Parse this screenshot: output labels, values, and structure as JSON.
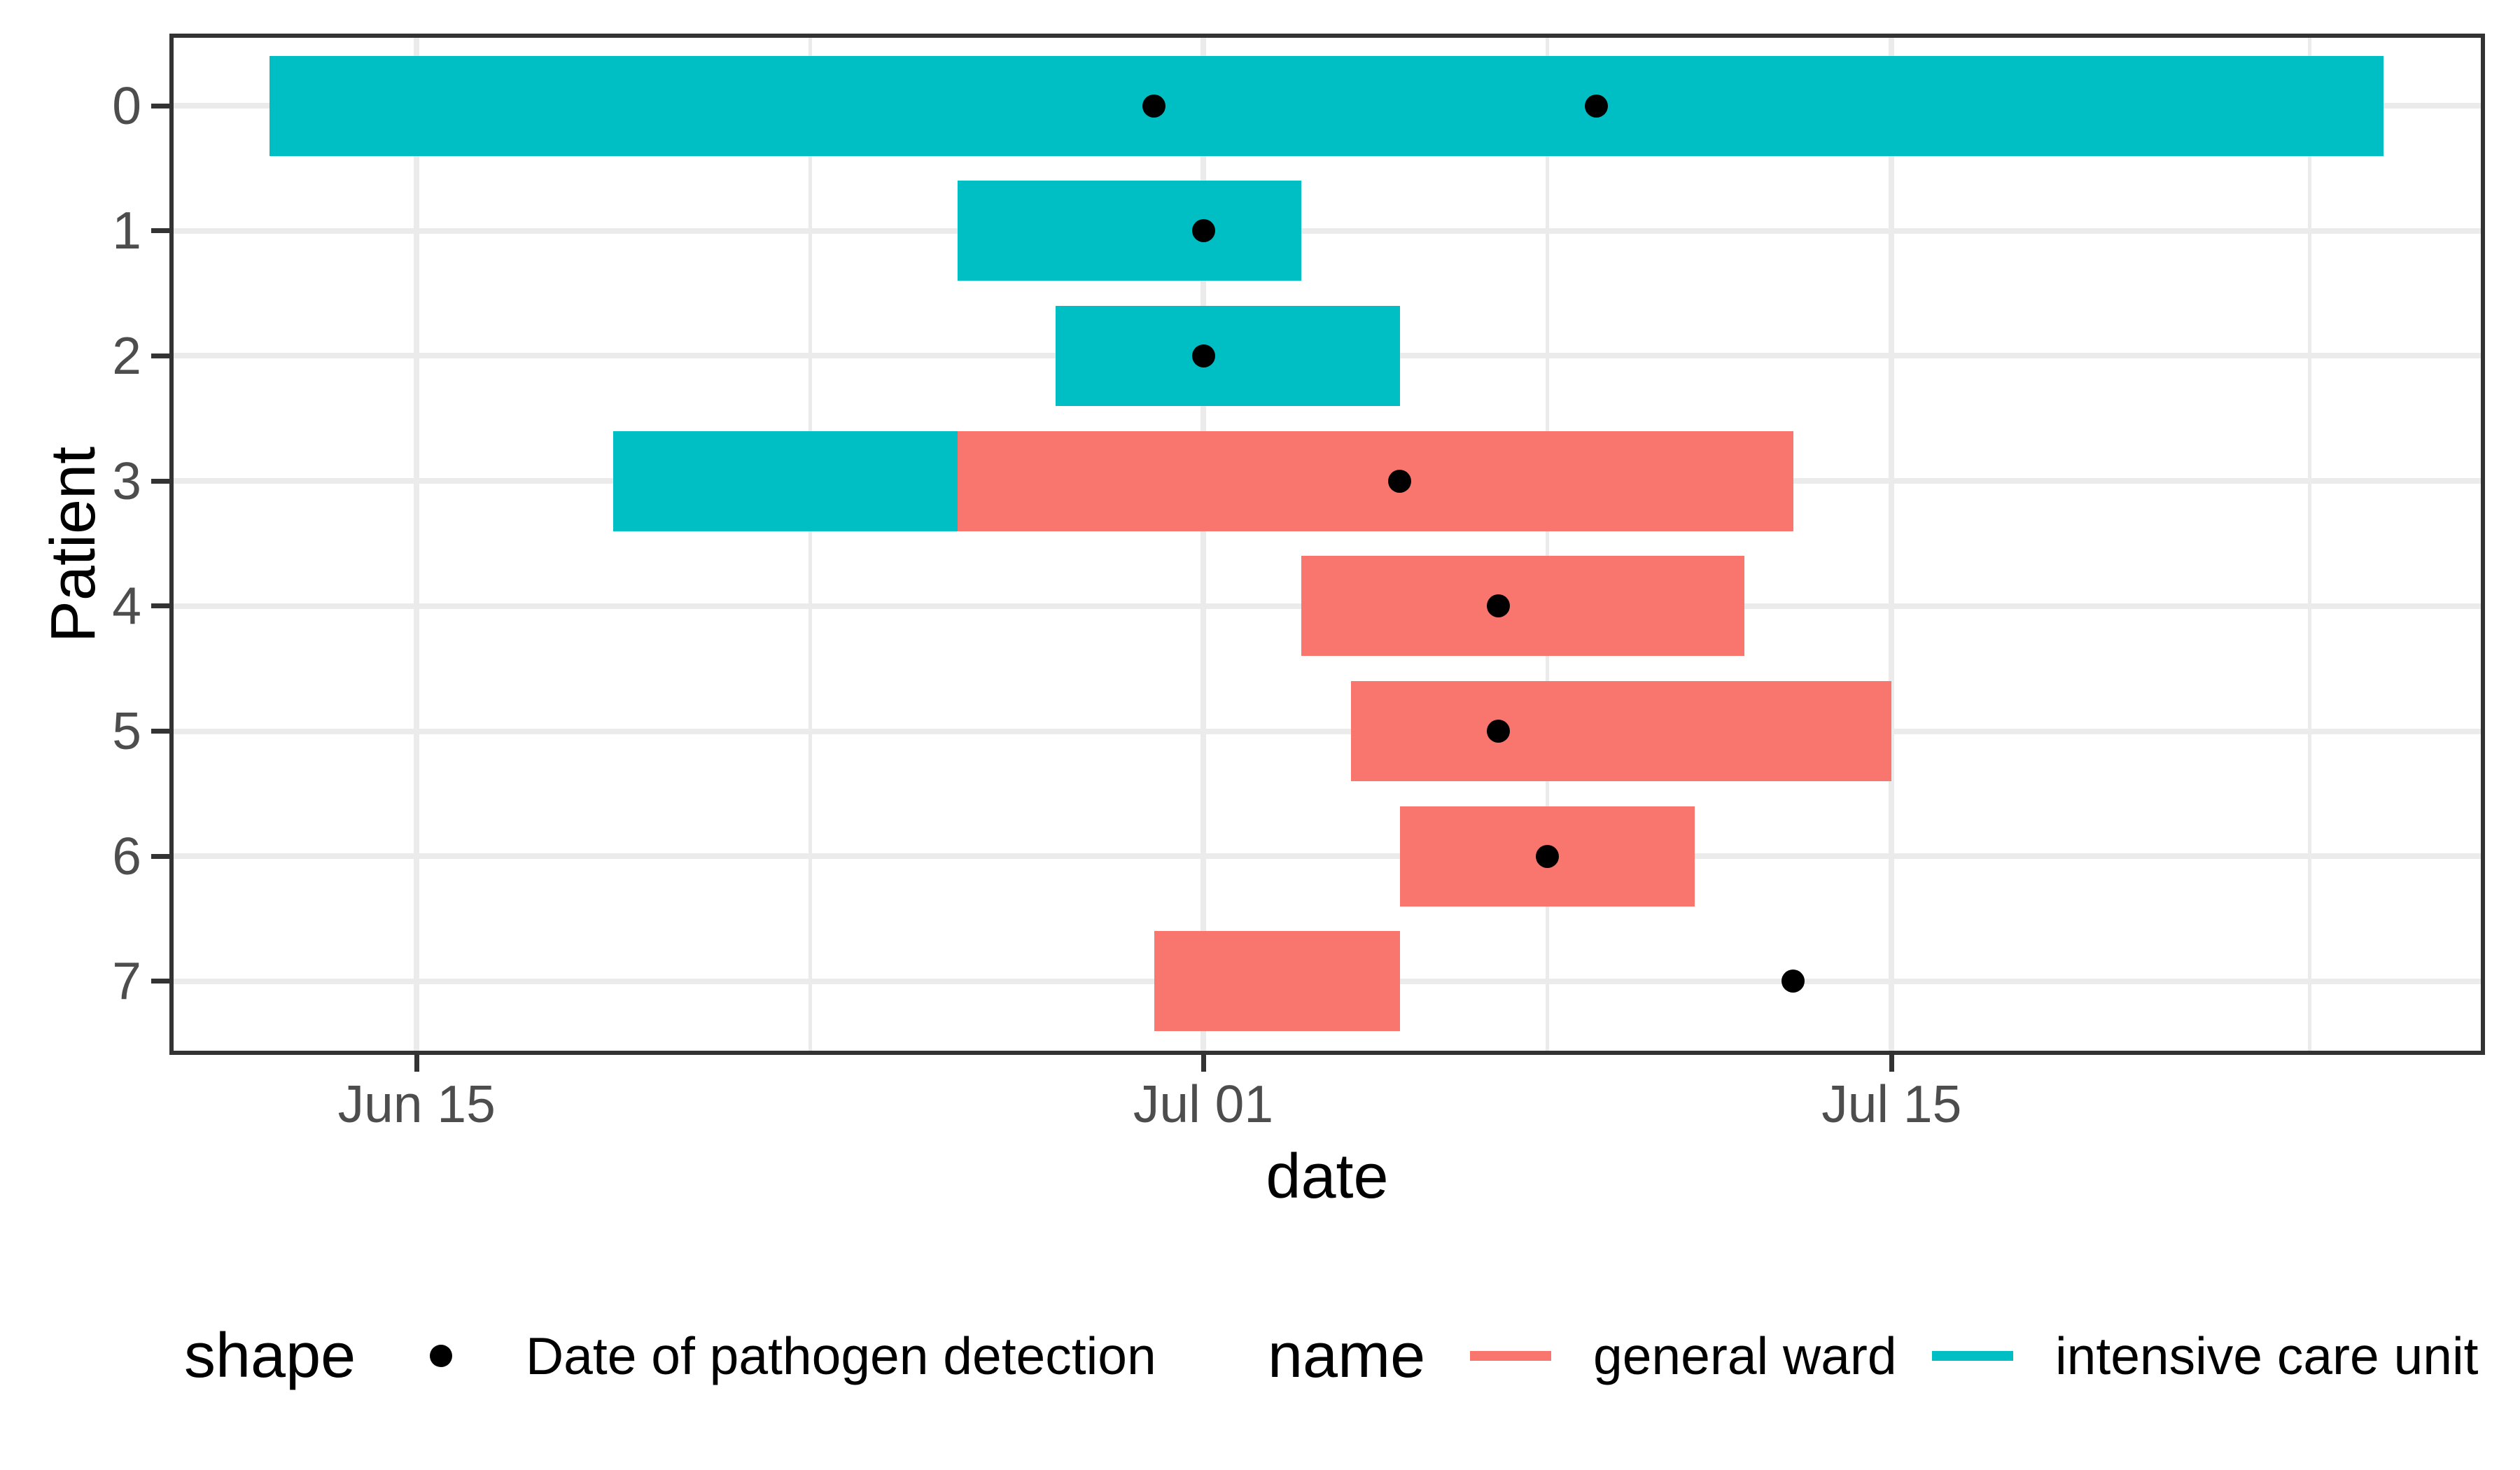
{
  "chart_data": {
    "type": "bar",
    "subtype": "gantt-timeline",
    "title": "",
    "xlabel": "date",
    "ylabel": "Patient",
    "x_ticks": [
      "Jun 15",
      "Jul 01",
      "Jul 15"
    ],
    "x_minor_gridlines": [
      "Jun 23",
      "Jul 08",
      "Jul 23.5"
    ],
    "y_ticks": [
      "0",
      "1",
      "2",
      "3",
      "4",
      "5",
      "6",
      "7"
    ],
    "grid": true,
    "legend_position": "bottom",
    "colors": {
      "general ward": "#F8766D",
      "intensive care unit": "#00BFC4",
      "detection_point": "#000000",
      "gridline": "#EBEBEB",
      "panel_border": "#333333",
      "tick_text": "#4D4D4D"
    },
    "patients": [
      {
        "id": "0",
        "stays": [
          {
            "ward": "intensive care unit",
            "start": "Jun 12",
            "end": "Jul 25"
          }
        ],
        "detections": [
          "Jun 30",
          "Jul 09"
        ]
      },
      {
        "id": "1",
        "stays": [
          {
            "ward": "intensive care unit",
            "start": "Jun 26",
            "end": "Jul 03"
          }
        ],
        "detections": [
          "Jul 01"
        ]
      },
      {
        "id": "2",
        "stays": [
          {
            "ward": "intensive care unit",
            "start": "Jun 28",
            "end": "Jul 05"
          }
        ],
        "detections": [
          "Jul 01"
        ]
      },
      {
        "id": "3",
        "stays": [
          {
            "ward": "intensive care unit",
            "start": "Jun 19",
            "end": "Jun 26"
          },
          {
            "ward": "general ward",
            "start": "Jun 26",
            "end": "Jul 13"
          }
        ],
        "detections": [
          "Jul 05"
        ]
      },
      {
        "id": "4",
        "stays": [
          {
            "ward": "general ward",
            "start": "Jul 03",
            "end": "Jul 12"
          }
        ],
        "detections": [
          "Jul 07"
        ]
      },
      {
        "id": "5",
        "stays": [
          {
            "ward": "general ward",
            "start": "Jul 04",
            "end": "Jul 15"
          }
        ],
        "detections": [
          "Jul 07"
        ]
      },
      {
        "id": "6",
        "stays": [
          {
            "ward": "general ward",
            "start": "Jul 05",
            "end": "Jul 11"
          }
        ],
        "detections": [
          "Jul 08"
        ]
      },
      {
        "id": "7",
        "stays": [
          {
            "ward": "general ward",
            "start": "Jun 30",
            "end": "Jul 05"
          }
        ],
        "detections": [
          "Jul 13"
        ]
      }
    ]
  },
  "legend": {
    "shape": {
      "title": "shape",
      "item": "Date of pathogen detection",
      "point_color": "#000000"
    },
    "name": {
      "title": "name",
      "items": [
        {
          "label": "general ward",
          "color": "#F8766D"
        },
        {
          "label": "intensive care unit",
          "color": "#00BFC4"
        }
      ]
    }
  }
}
